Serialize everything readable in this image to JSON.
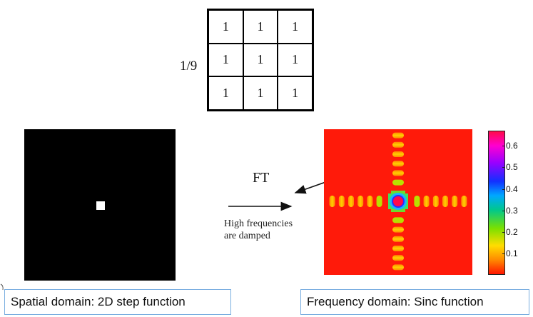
{
  "kernel": {
    "prefix": "1/9",
    "values": [
      [
        "1",
        "1",
        "1"
      ],
      [
        "1",
        "1",
        "1"
      ],
      [
        "1",
        "1",
        "1"
      ]
    ]
  },
  "transform_label": "FT",
  "annotation": {
    "line1": "High frequencies",
    "line2": "are damped"
  },
  "colorbar": {
    "ticks": [
      "0.6",
      "0.5",
      "0.4",
      "0.3",
      "0.2",
      "0.1"
    ]
  },
  "captions": {
    "spatial": "Spatial domain: 2D step function",
    "frequency": "Frequency domain: Sinc function"
  },
  "colors": {
    "caption_border": "#7aaee0",
    "sinc_background": "#ff1a0a",
    "sinc_center": "#ff0a4a"
  }
}
